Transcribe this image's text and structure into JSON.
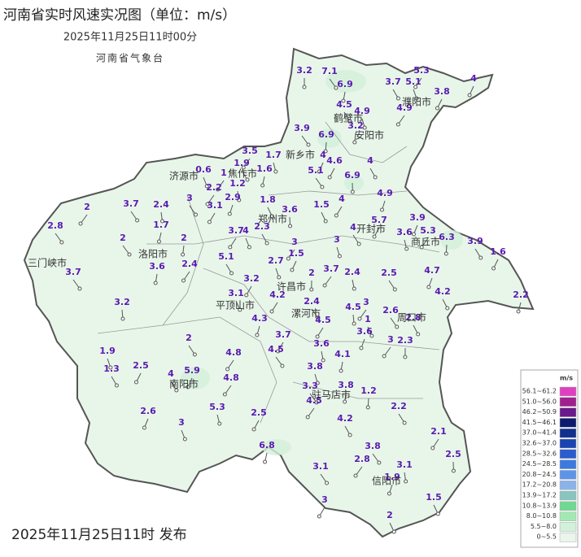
{
  "title": "河南省实时风速实况图（单位：m/s）",
  "time": "2025年11月25日11时00分",
  "agency": "河南省气象台",
  "footer": "2025年11月25日11时 发布",
  "cities": [
    "濮阳市",
    "鹤壁市",
    "安阳市",
    "新乡市",
    "焦作市",
    "济源市",
    "郑州市",
    "开封市",
    "商丘市",
    "洛阳市",
    "三门峡市",
    "许昌市",
    "平顶山市",
    "漯河市",
    "周口市",
    "南阳市",
    "驻马店市",
    "信阳市"
  ],
  "stations": [
    3.2,
    7.1,
    6.9,
    5.3,
    5.1,
    3.7,
    3.8,
    4,
    4.5,
    4.9,
    4.9,
    3.2,
    3.9,
    6.9,
    3.5,
    1.7,
    1.9,
    4,
    4.6,
    4,
    0.6,
    1,
    1.6,
    5.1,
    6.9,
    2.2,
    1.2,
    3,
    2.9,
    3.1,
    1.8,
    1.5,
    4,
    4.9,
    3.7,
    2.4,
    2,
    3.6,
    2.8,
    1.7,
    3.7,
    4,
    2.3,
    5.7,
    3.9,
    4,
    3.6,
    5.3,
    6.3,
    2,
    2,
    3,
    3,
    3.9,
    1.5,
    1.6,
    5.1,
    2.7,
    2.4,
    3.6,
    3.7,
    2,
    3.7,
    2.4,
    2.5,
    4.7,
    3.2,
    4.2,
    3.1,
    4.2,
    2.2,
    2.4,
    3.2,
    3,
    4.5,
    2.6,
    4.3,
    4.5,
    1,
    2.8,
    3.7,
    3.6,
    2,
    3.6,
    3,
    2.3,
    4.5,
    4.1,
    4.8,
    1.9,
    1.3,
    2.5,
    5.9,
    4,
    3.8,
    4.8,
    3.8,
    3.3,
    1.2,
    4.5,
    5.3,
    2.2,
    2.6,
    2.5,
    4.2,
    3,
    2.1,
    6.8,
    3.8,
    2.5,
    2.8,
    3.1,
    3.1,
    1.9,
    3,
    1.5,
    2
  ],
  "legend": {
    "unit": "m/s",
    "items": [
      {
        "label": "56.1~61.2",
        "color": "#e040c0"
      },
      {
        "label": "51.0~56.0",
        "color": "#a02090"
      },
      {
        "label": "46.2~50.9",
        "color": "#6a1a8a"
      },
      {
        "label": "41.5~46.1",
        "color": "#0c1a70"
      },
      {
        "label": "37.0~41.4",
        "color": "#12308e"
      },
      {
        "label": "32.6~37.0",
        "color": "#1a44b2"
      },
      {
        "label": "28.5~32.6",
        "color": "#2a5cd0"
      },
      {
        "label": "24.5~28.5",
        "color": "#3c7ae0"
      },
      {
        "label": "20.8~24.5",
        "color": "#5c94e8"
      },
      {
        "label": "17.2~20.8",
        "color": "#8cb2ea"
      },
      {
        "label": "13.9~17.2",
        "color": "#88c4c0"
      },
      {
        "label": "10.8~13.9",
        "color": "#70d890"
      },
      {
        "label": "8.0~10.8",
        "color": "#a2e8b2"
      },
      {
        "label": "5.5~8.0",
        "color": "#d2f0da"
      },
      {
        "label": "0~5.5",
        "color": "#eaf6ec"
      }
    ]
  }
}
